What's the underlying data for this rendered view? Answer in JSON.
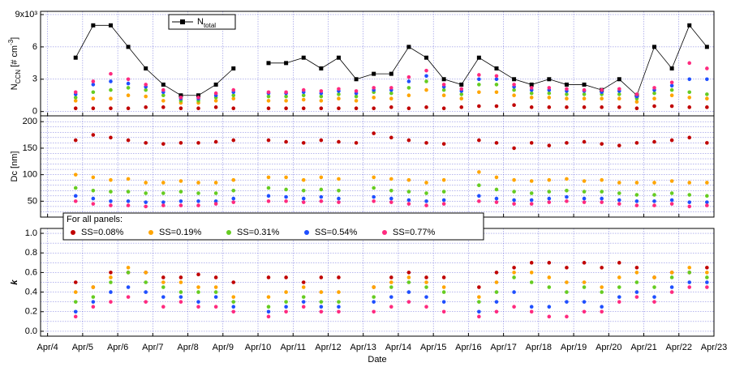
{
  "chart_data": [
    {
      "type": "scatter",
      "y_label": [
        {
          "text": "N"
        },
        {
          "text": "CCN",
          "shift": "sub"
        },
        {
          "text": " [# cm"
        },
        {
          "text": "-3",
          "shift": "sup"
        },
        {
          "text": "]"
        }
      ],
      "x": [
        4.8,
        5.3,
        5.8,
        6.3,
        6.8,
        7.3,
        7.8,
        8.3,
        8.8,
        9.3,
        9.8,
        10.3,
        10.8,
        11.3,
        11.8,
        12.3,
        12.8,
        13.3,
        13.8,
        14.3,
        14.8,
        15.3,
        15.8,
        16.3,
        16.8,
        17.3,
        17.8,
        18.3,
        18.8,
        19.3,
        19.8,
        20.3,
        20.8,
        21.3,
        21.8,
        22.3,
        22.8
      ],
      "xlim": [
        3.8,
        23
      ],
      "xticks": [
        4,
        5,
        6,
        7,
        8,
        9,
        10,
        11,
        12,
        13,
        14,
        15,
        16,
        17,
        18,
        19,
        20,
        21,
        22,
        23
      ],
      "ylim": [
        -0.4,
        9.3
      ],
      "yticks": [
        0,
        3,
        6,
        {
          "value": 9,
          "label": "9x10³"
        }
      ],
      "grid": true,
      "series": [
        {
          "name": [
            {
              "text": "N"
            },
            {
              "text": "total",
              "shift": "sub"
            }
          ],
          "color": "#000000",
          "mode": "line-markers",
          "values": [
            5,
            8,
            8,
            6,
            4,
            2.5,
            1.5,
            1.5,
            2.5,
            4,
            null,
            4.5,
            4.5,
            5,
            4,
            5,
            3,
            3.5,
            3.5,
            6,
            5,
            3,
            2.5,
            5,
            4,
            3,
            2.5,
            3,
            2.5,
            2.5,
            2,
            3,
            1.5,
            6,
            4,
            8,
            6
          ]
        },
        {
          "color": "#c00000",
          "values": [
            0.3,
            0.3,
            0.3,
            0.3,
            0.4,
            0.4,
            0.3,
            0.3,
            0.4,
            0.3,
            null,
            0.3,
            0.3,
            0.3,
            0.3,
            0.3,
            0.3,
            0.3,
            0.4,
            0.3,
            0.4,
            0.3,
            0.4,
            0.5,
            0.5,
            0.6,
            0.4,
            0.4,
            0.4,
            0.4,
            0.4,
            0.4,
            0.3,
            0.5,
            0.5,
            0.4,
            0.4
          ]
        },
        {
          "color": "#ffa500",
          "values": [
            1.0,
            1.2,
            1.2,
            1.5,
            1.4,
            1.0,
            0.8,
            0.8,
            1.0,
            1.2,
            null,
            1.0,
            1.0,
            1.1,
            1.0,
            1.2,
            1.0,
            1.3,
            1.2,
            1.5,
            2.0,
            1.5,
            1.2,
            1.8,
            1.8,
            1.5,
            1.3,
            1.3,
            1.2,
            1.2,
            1.2,
            1.2,
            0.9,
            1.2,
            1.5,
            1.3,
            1.2
          ]
        },
        {
          "color": "#66cc22",
          "values": [
            1.3,
            1.8,
            2.0,
            2.2,
            2.0,
            1.5,
            1.0,
            1.0,
            1.3,
            1.5,
            null,
            1.4,
            1.4,
            1.5,
            1.4,
            1.6,
            1.4,
            1.8,
            1.7,
            2.2,
            2.8,
            2.0,
            1.6,
            2.5,
            2.5,
            2.0,
            1.7,
            1.7,
            1.6,
            1.6,
            1.6,
            1.6,
            1.2,
            1.7,
            2.0,
            1.8,
            1.6
          ]
        },
        {
          "color": "#1f4fff",
          "values": [
            1.6,
            2.5,
            2.8,
            2.6,
            2.3,
            1.8,
            1.2,
            1.2,
            1.5,
            1.8,
            null,
            1.7,
            1.7,
            1.8,
            1.7,
            1.9,
            1.7,
            2.0,
            2.0,
            2.8,
            3.3,
            2.3,
            1.9,
            3.0,
            3.0,
            2.3,
            2.0,
            2.0,
            1.9,
            1.9,
            1.8,
            1.9,
            1.4,
            2.0,
            2.4,
            3.0,
            3.0
          ]
        },
        {
          "color": "#ff2a7f",
          "values": [
            1.8,
            2.8,
            3.5,
            3.0,
            2.5,
            2.0,
            1.3,
            1.3,
            1.7,
            2.0,
            null,
            1.8,
            1.8,
            2.0,
            1.9,
            2.1,
            1.9,
            2.2,
            2.2,
            3.2,
            3.8,
            2.5,
            2.1,
            3.4,
            3.3,
            2.5,
            2.2,
            2.2,
            2.1,
            2.0,
            2.0,
            2.1,
            1.6,
            2.2,
            2.7,
            4.5,
            4.0
          ]
        }
      ]
    },
    {
      "type": "scatter",
      "y_label": [
        {
          "text": "Dc [nm]"
        }
      ],
      "x": [
        4.8,
        5.3,
        5.8,
        6.3,
        6.8,
        7.3,
        7.8,
        8.3,
        8.8,
        9.3,
        9.8,
        10.3,
        10.8,
        11.3,
        11.8,
        12.3,
        12.8,
        13.3,
        13.8,
        14.3,
        14.8,
        15.3,
        15.8,
        16.3,
        16.8,
        17.3,
        17.8,
        18.3,
        18.8,
        19.3,
        19.8,
        20.3,
        20.8,
        21.3,
        21.8,
        22.3,
        22.8
      ],
      "xlim": [
        3.8,
        23
      ],
      "xticks": [
        4,
        5,
        6,
        7,
        8,
        9,
        10,
        11,
        12,
        13,
        14,
        15,
        16,
        17,
        18,
        19,
        20,
        21,
        22,
        23
      ],
      "ylim": [
        20,
        211
      ],
      "yticks": [
        50,
        100,
        150,
        200
      ],
      "minor_yticks": [
        30,
        40,
        60,
        70,
        80,
        90,
        110,
        120,
        130,
        140,
        160,
        170,
        180,
        190
      ],
      "grid": true,
      "series": [
        {
          "color": "#c00000",
          "values": [
            165,
            175,
            170,
            165,
            160,
            158,
            160,
            160,
            162,
            165,
            null,
            165,
            162,
            160,
            165,
            162,
            160,
            178,
            170,
            165,
            160,
            158,
            null,
            165,
            160,
            150,
            160,
            155,
            160,
            162,
            158,
            155,
            160,
            162,
            165,
            170,
            160
          ]
        },
        {
          "color": "#ffa500",
          "values": [
            100,
            95,
            90,
            92,
            85,
            85,
            88,
            85,
            85,
            90,
            null,
            95,
            95,
            90,
            95,
            92,
            null,
            95,
            92,
            90,
            85,
            90,
            null,
            105,
            95,
            90,
            88,
            90,
            92,
            88,
            90,
            85,
            85,
            85,
            88,
            85,
            85
          ]
        },
        {
          "color": "#66cc22",
          "values": [
            75,
            70,
            68,
            68,
            65,
            65,
            68,
            65,
            65,
            70,
            null,
            75,
            72,
            70,
            72,
            70,
            null,
            75,
            70,
            68,
            65,
            68,
            null,
            80,
            72,
            68,
            65,
            68,
            70,
            68,
            68,
            65,
            62,
            62,
            65,
            62,
            60
          ]
        },
        {
          "color": "#1f4fff",
          "values": [
            60,
            55,
            50,
            50,
            48,
            48,
            50,
            50,
            50,
            55,
            null,
            60,
            58,
            55,
            58,
            55,
            null,
            58,
            55,
            52,
            50,
            52,
            null,
            60,
            55,
            52,
            52,
            55,
            58,
            55,
            55,
            52,
            50,
            50,
            52,
            48,
            48
          ]
        },
        {
          "color": "#ff2a7f",
          "values": [
            50,
            45,
            42,
            42,
            40,
            42,
            42,
            42,
            45,
            48,
            null,
            50,
            50,
            48,
            50,
            48,
            null,
            50,
            48,
            45,
            42,
            45,
            null,
            50,
            48,
            45,
            45,
            48,
            50,
            48,
            48,
            45,
            42,
            42,
            45,
            40,
            42
          ]
        }
      ]
    },
    {
      "type": "scatter",
      "y_label": [
        {
          "text": "k",
          "style": "italic"
        }
      ],
      "x_label": "Date",
      "legend_title": "For all panels:",
      "x": [
        4.8,
        5.3,
        5.8,
        6.3,
        6.8,
        7.3,
        7.8,
        8.3,
        8.8,
        9.3,
        9.8,
        10.3,
        10.8,
        11.3,
        11.8,
        12.3,
        12.8,
        13.3,
        13.8,
        14.3,
        14.8,
        15.3,
        15.8,
        16.3,
        16.8,
        17.3,
        17.8,
        18.3,
        18.8,
        19.3,
        19.8,
        20.3,
        20.8,
        21.3,
        21.8,
        22.3,
        22.8
      ],
      "xlim": [
        3.8,
        23
      ],
      "xticks": [
        {
          "value": 4,
          "label": "Apr/4"
        },
        {
          "value": 5,
          "label": "Apr/5"
        },
        {
          "value": 6,
          "label": "Apr/6"
        },
        {
          "value": 7,
          "label": "Apr/7"
        },
        {
          "value": 8,
          "label": "Apr/8"
        },
        {
          "value": 9,
          "label": "Apr/9"
        },
        {
          "value": 10,
          "label": "Apr/10"
        },
        {
          "value": 11,
          "label": "Apr/11"
        },
        {
          "value": 12,
          "label": "Apr/12"
        },
        {
          "value": 13,
          "label": "Apr/13"
        },
        {
          "value": 14,
          "label": "Apr/14"
        },
        {
          "value": 15,
          "label": "Apr/15"
        },
        {
          "value": 16,
          "label": "Apr/16"
        },
        {
          "value": 17,
          "label": "Apr/17"
        },
        {
          "value": 18,
          "label": "Apr/18"
        },
        {
          "value": 19,
          "label": "Apr/19"
        },
        {
          "value": 20,
          "label": "Apr/20"
        },
        {
          "value": 21,
          "label": "Apr/21"
        },
        {
          "value": 22,
          "label": "Apr/22"
        },
        {
          "value": 23,
          "label": "Apr/23"
        }
      ],
      "ylim": [
        -0.05,
        1.05
      ],
      "yticks": [
        {
          "value": 0,
          "label": "0.0"
        },
        0.2,
        0.4,
        0.6,
        0.8,
        {
          "value": 1,
          "label": "1.0"
        }
      ],
      "minor_yticks": [
        0.1,
        0.3,
        0.5,
        0.7,
        0.9
      ],
      "grid": true,
      "series": [
        {
          "name": "SS=0.08%",
          "color": "#c00000",
          "values": [
            0.5,
            0.45,
            0.6,
            0.6,
            0.6,
            0.55,
            0.55,
            0.58,
            0.55,
            0.5,
            null,
            0.55,
            0.55,
            0.5,
            0.55,
            0.55,
            null,
            0.45,
            0.55,
            0.6,
            0.55,
            0.55,
            null,
            0.45,
            0.6,
            0.65,
            0.7,
            0.7,
            0.65,
            0.7,
            0.65,
            0.7,
            0.65,
            0.55,
            0.6,
            0.6,
            0.65
          ]
        },
        {
          "name": "SS=0.19%",
          "color": "#ffa500",
          "values": [
            0.4,
            0.45,
            0.55,
            0.65,
            0.6,
            0.5,
            0.5,
            0.45,
            0.45,
            0.35,
            null,
            0.35,
            0.4,
            0.45,
            0.4,
            0.4,
            null,
            0.45,
            0.5,
            0.55,
            0.5,
            0.45,
            null,
            0.35,
            0.5,
            0.6,
            0.6,
            0.55,
            0.5,
            0.5,
            0.45,
            0.55,
            0.6,
            0.55,
            0.6,
            0.65,
            0.6
          ]
        },
        {
          "name": "SS=0.31%",
          "color": "#66cc22",
          "values": [
            0.3,
            0.35,
            0.5,
            0.6,
            0.5,
            0.45,
            0.4,
            0.4,
            0.4,
            0.3,
            null,
            0.25,
            0.3,
            0.35,
            0.3,
            0.3,
            null,
            0.35,
            0.45,
            0.5,
            0.45,
            0.4,
            null,
            0.3,
            0.4,
            0.55,
            0.5,
            0.45,
            0.4,
            0.45,
            0.4,
            0.45,
            0.5,
            0.45,
            0.55,
            0.6,
            0.55
          ]
        },
        {
          "name": "SS=0.54%",
          "color": "#1f4fff",
          "values": [
            0.2,
            0.3,
            0.4,
            0.45,
            0.4,
            0.35,
            0.35,
            0.3,
            0.35,
            0.25,
            null,
            0.2,
            0.25,
            0.3,
            0.25,
            0.25,
            null,
            0.3,
            0.35,
            0.4,
            0.35,
            0.3,
            null,
            0.2,
            0.3,
            0.4,
            0.25,
            0.25,
            0.3,
            0.3,
            0.25,
            0.35,
            0.4,
            0.35,
            0.45,
            0.5,
            0.5
          ]
        },
        {
          "name": "SS=0.77%",
          "color": "#ff2a7f",
          "values": [
            0.15,
            0.25,
            0.3,
            0.35,
            0.3,
            0.25,
            0.3,
            0.25,
            0.25,
            0.2,
            null,
            0.15,
            0.2,
            0.25,
            0.2,
            0.2,
            null,
            0.2,
            0.25,
            0.3,
            0.25,
            0.2,
            null,
            0.15,
            0.2,
            0.25,
            0.2,
            0.15,
            0.15,
            0.2,
            0.2,
            0.3,
            0.35,
            0.3,
            0.4,
            0.45,
            0.45
          ]
        }
      ]
    }
  ]
}
